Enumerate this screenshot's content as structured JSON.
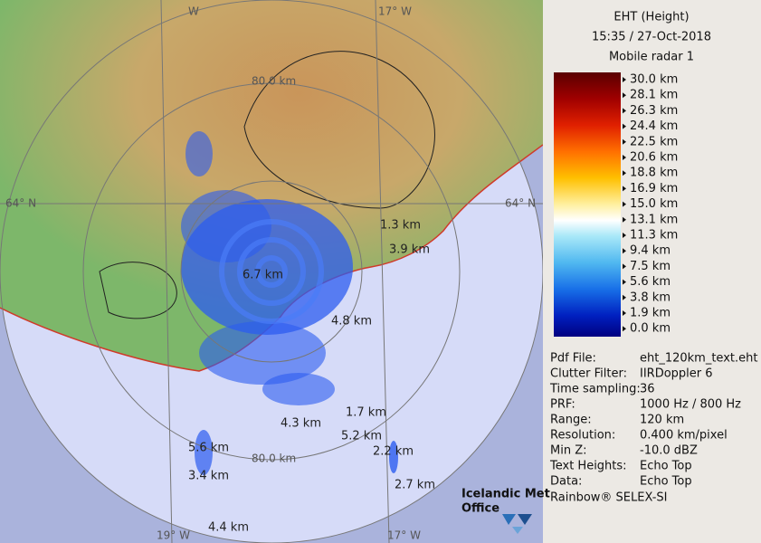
{
  "map": {
    "lon_labels": [
      "W",
      "17° W",
      "19° W",
      "17° W"
    ],
    "lat_labels": [
      "64° N",
      "64° N"
    ],
    "range_labels": [
      "80.0 km",
      "80.0 km"
    ],
    "echo_tops": [
      "1.3 km",
      "3.9 km",
      "6.7 km",
      "4.8 km",
      "1.7 km",
      "4.3 km",
      "5.2 km",
      "2.2 km",
      "5.6 km",
      "3.4 km",
      "2.7 km",
      "4.4 km"
    ],
    "logo": [
      "Icelandic Met",
      "Office"
    ]
  },
  "panel": {
    "title": [
      "EHT (Height)",
      "15:35 / 27-Oct-2018",
      "Mobile radar 1"
    ],
    "scale": [
      "30.0 km",
      "28.1 km",
      "26.3 km",
      "24.4 km",
      "22.5 km",
      "20.6 km",
      "18.8 km",
      "16.9 km",
      "15.0 km",
      "13.1 km",
      "11.3 km",
      "9.4 km",
      "7.5 km",
      "5.6 km",
      "3.8 km",
      "1.9 km",
      "0.0 km"
    ],
    "info": [
      [
        "Pdf File:",
        "eht_120km_text.eht"
      ],
      [
        "Clutter Filter:",
        "IIRDoppler 6"
      ],
      [
        "Time sampling:",
        "36"
      ],
      [
        "PRF:",
        "1000 Hz / 800 Hz"
      ],
      [
        "Range:",
        "120 km"
      ],
      [
        "Resolution:",
        "0.400 km/pixel"
      ],
      [
        "Min Z:",
        "-10.0 dBZ"
      ],
      [
        "Text Heights:",
        "Echo Top"
      ],
      [
        "Data:",
        "Echo Top"
      ]
    ],
    "footer": "Rainbow® SELEX-SI"
  }
}
